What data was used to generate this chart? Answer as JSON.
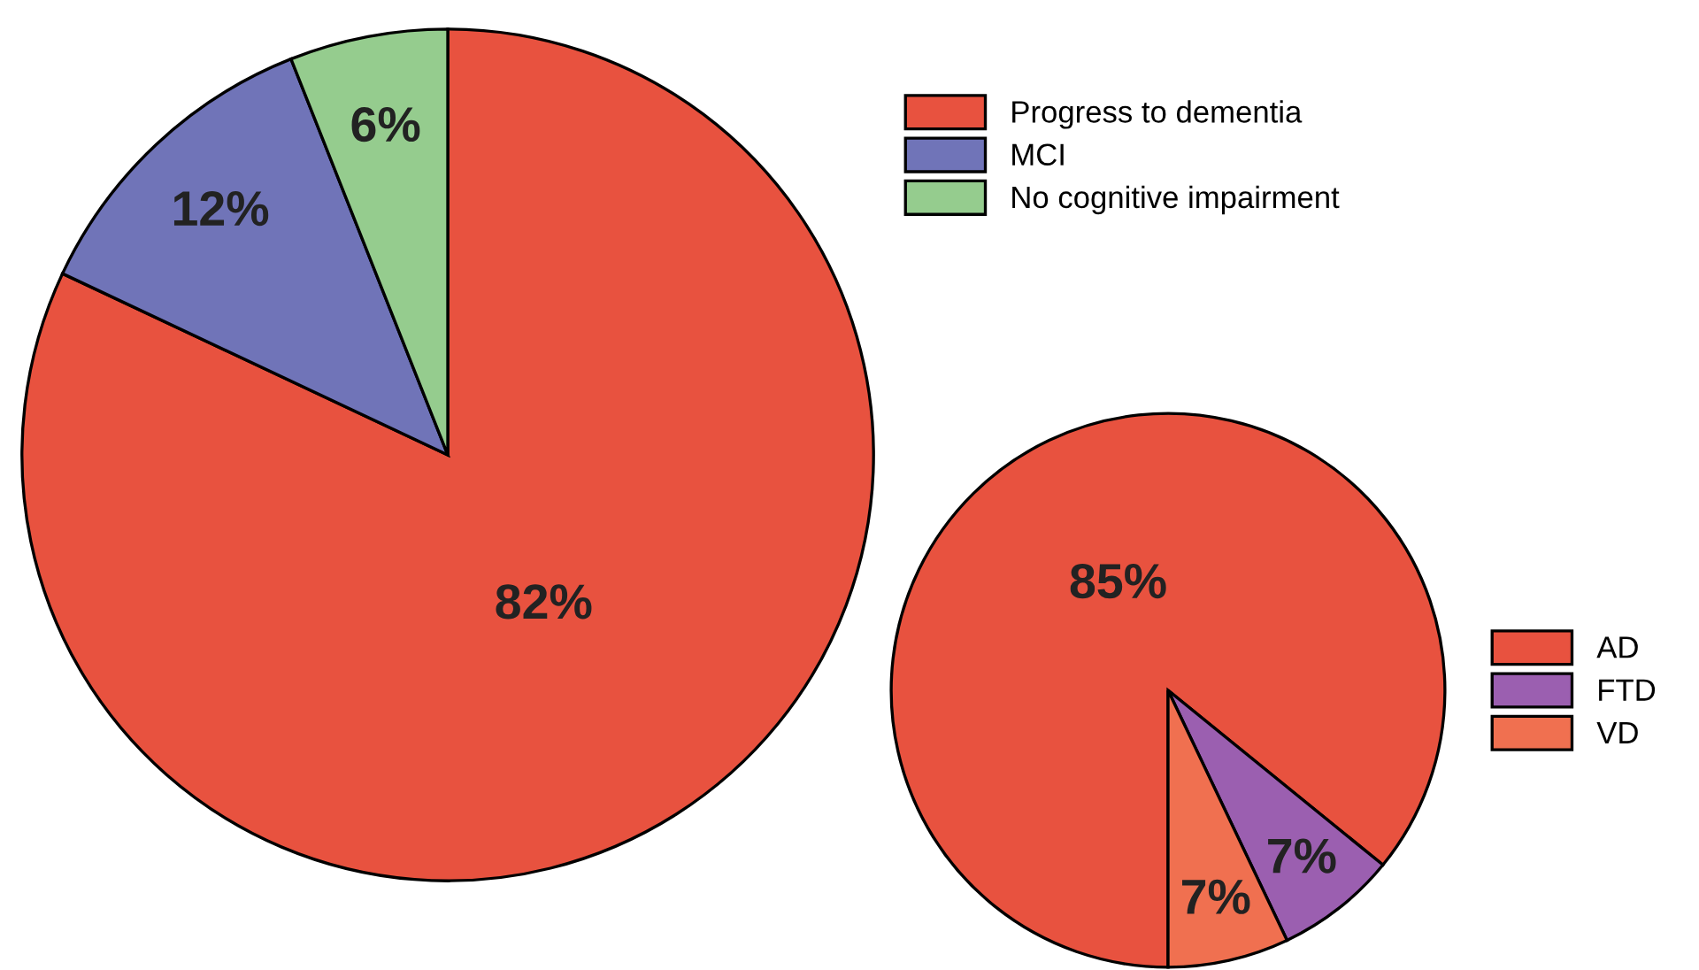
{
  "chart_data": [
    {
      "type": "pie",
      "categories": [
        "Progress to dementia",
        "MCI",
        "No cognitive impairment"
      ],
      "values": [
        82,
        12,
        6
      ],
      "value_labels": [
        "82%",
        "12%",
        "6%"
      ],
      "colors": [
        "#e8523f",
        "#7074b8",
        "#95cc8e"
      ],
      "legend": "top right"
    },
    {
      "type": "pie",
      "categories": [
        "AD",
        "FTD",
        "VD"
      ],
      "values": [
        85,
        7,
        7
      ],
      "value_labels": [
        "85%",
        "7%",
        "7%"
      ],
      "colors": [
        "#e8523f",
        "#9b5fb0",
        "#f07050"
      ],
      "legend": "right"
    }
  ]
}
